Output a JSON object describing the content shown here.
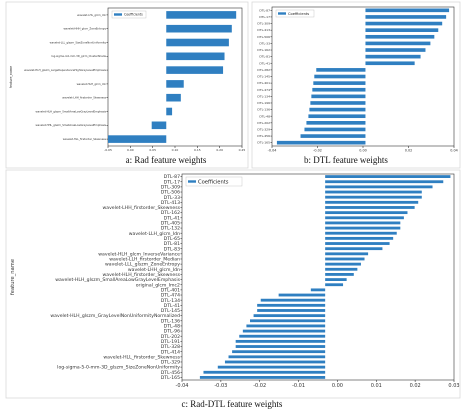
{
  "captions": {
    "a": "a: Rad feature weights",
    "b": "b: DTL feature weights",
    "c": "c: Rad-DTL feature weights"
  },
  "chart_data": [
    {
      "type": "bar",
      "orientation": "horizontal",
      "legend": "Coefficients",
      "legend_position": "top-left",
      "ylabel": "feature_name",
      "categories": [
        "wavelet-LHL_glcm_Idn",
        "wavelet-HHH_glcm_ZoneEntropy",
        "wavelet-LLL_glszm_SizeZoneNonUniformity",
        "log-sigma-4-0-mm-3D_glcm_ClusterShade",
        "wavelet-HLH_glszm_LargeDependenceHighGrayLevelEmphasis",
        "wavelet-HLH_glcm_Idn",
        "wavelet-LHH_firstorder_Skewness",
        "wavelet-HLH_glszm_SmallAreaLowGrayLevelEmphasis",
        "wavelet-HHL_glszm_SmallAreaLowGrayLevelEmphasis",
        "wavelet-HLL_firstorder_Skewness"
      ],
      "values": [
        0.24,
        0.225,
        0.215,
        0.2,
        0.195,
        0.06,
        0.05,
        0.02,
        -0.05,
        -0.2
      ],
      "xticks": [
        "-0.05",
        "0.00",
        "0.05",
        "0.10",
        "0.15",
        "0.20",
        "0.25"
      ],
      "xlim": [
        -0.2,
        0.26
      ],
      "grid": false
    },
    {
      "type": "bar",
      "orientation": "horizontal",
      "legend": "Coefficients",
      "legend_position": "top-left",
      "categories": [
        "DTL-87",
        "DTL-17",
        "DTL-309",
        "DTL-413",
        "DTL-506",
        "DTL-33",
        "DTL-162",
        "DTL-81",
        "DTL-41",
        "DTL-282",
        "DTL-145",
        "DTL-401",
        "DTL-474",
        "DTL-134",
        "DTL-196",
        "DTL-136",
        "DTL-48",
        "DTL-202",
        "DTL-329",
        "DTL-456",
        "DTL-165"
      ],
      "values": [
        0.085,
        0.082,
        0.078,
        0.074,
        0.07,
        0.066,
        0.061,
        0.056,
        0.05,
        -0.05,
        -0.052,
        -0.053,
        -0.054,
        -0.055,
        -0.056,
        -0.057,
        -0.058,
        -0.06,
        -0.062,
        -0.066,
        -0.09
      ],
      "xticks": [
        "-0.04",
        "-0.02",
        "0.00",
        "0.02",
        "0.04"
      ],
      "xlim": [
        -0.095,
        0.09
      ],
      "grid": false
    },
    {
      "type": "bar",
      "orientation": "horizontal",
      "legend": "Coefficients",
      "legend_position": "top-left",
      "ylabel": "feature_name",
      "categories": [
        "DTL-87",
        "DTL-17",
        "DTL-309",
        "DTL-506",
        "DTL-33",
        "DTL-413",
        "wavelet-LHH_firstorder_Skewness",
        "DTL-162",
        "DTL-41",
        "DTL-405",
        "DTL-132",
        "wavelet-LLH_glcm_Idn",
        "DTL-65",
        "DTL-81",
        "DTL-83",
        "wavelet-HLH_glcm_InverseVariance",
        "wavelet-LLH_firstorder_Median",
        "wavelet-LLL_glszm_ZoneEntropy",
        "wavelet-LHH_glcm_Idn",
        "wavelet-HLH_firstorder_Skewness",
        "wavelet-HLH_glszm_SmallAreaLowGrayLevelEmphasis",
        "original_glcm_Imc2",
        "DTL-401",
        "DTL-474",
        "DTL-134",
        "DTL-41",
        "DTL-145",
        "wavelet-HLH_glszm_GrayLevelNonUniformityNormalized",
        "DTL-136",
        "DTL-48",
        "DTL-96",
        "DTL-202",
        "DTL-191",
        "DTL-328",
        "DTL-414",
        "wavelet-HLL_firstorder_Skewness",
        "DTL-329",
        "log-sigma-5-0-mm-3D_glszm_SizeZoneNonUniformity",
        "DTL-456",
        "DTL-165"
      ],
      "values": [
        0.035,
        0.033,
        0.03,
        0.027,
        0.027,
        0.026,
        0.025,
        0.023,
        0.022,
        0.021,
        0.021,
        0.02,
        0.019,
        0.018,
        0.016,
        0.012,
        0.011,
        0.01,
        0.009,
        0.008,
        0.006,
        0.005,
        -0.004,
        -0.013,
        -0.018,
        -0.019,
        -0.019,
        -0.02,
        -0.021,
        -0.022,
        -0.023,
        -0.024,
        -0.025,
        -0.025,
        -0.026,
        -0.027,
        -0.028,
        -0.03,
        -0.034,
        -0.035
      ],
      "xticks": [
        "-0.04",
        "-0.03",
        "-0.02",
        "-0.01",
        "0.00",
        "0.01",
        "0.02",
        "0.03"
      ],
      "xlim": [
        -0.04,
        0.036
      ],
      "grid": false
    }
  ]
}
